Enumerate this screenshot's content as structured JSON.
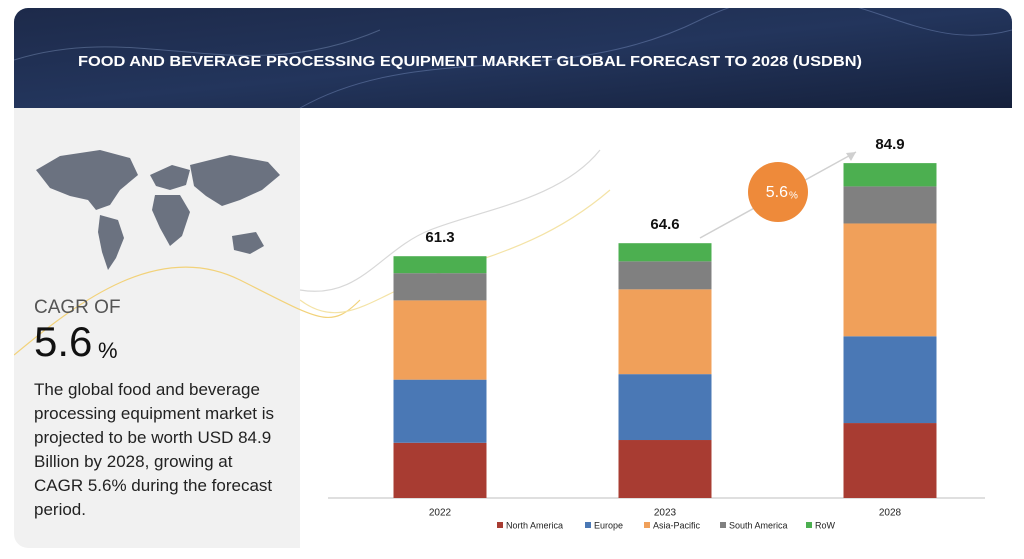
{
  "banner_title": "FOOD AND BEVERAGE PROCESSING EQUIPMENT MARKET GLOBAL FORECAST TO 2028 (USDBN)",
  "cagr": {
    "label": "CAGR OF",
    "value": "5.6",
    "unit": "%"
  },
  "description": "The global food and beverage processing equipment market is projected to be worth USD 84.9 Billion by 2028, growing at CAGR 5.6% during the forecast period.",
  "badge": {
    "value": "5.6",
    "unit": "%"
  },
  "chart_data": {
    "type": "stacked_bar",
    "categories": [
      "2022",
      "2023",
      "2028"
    ],
    "series": [
      {
        "name": "North America",
        "color": "#a83c32",
        "values": [
          14.0,
          14.7,
          19.0
        ]
      },
      {
        "name": "Europe",
        "color": "#4a78b5",
        "values": [
          16.0,
          16.7,
          22.0
        ]
      },
      {
        "name": "Asia-Pacific",
        "color": "#f0a05a",
        "values": [
          20.1,
          21.5,
          28.6
        ]
      },
      {
        "name": "South America",
        "color": "#808080",
        "values": [
          6.9,
          7.1,
          9.4
        ]
      },
      {
        "name": "RoW",
        "color": "#4caf50",
        "values": [
          4.3,
          4.6,
          5.9
        ]
      }
    ],
    "totals": [
      61.3,
      64.6,
      84.9
    ],
    "ylim": [
      0,
      90
    ]
  }
}
